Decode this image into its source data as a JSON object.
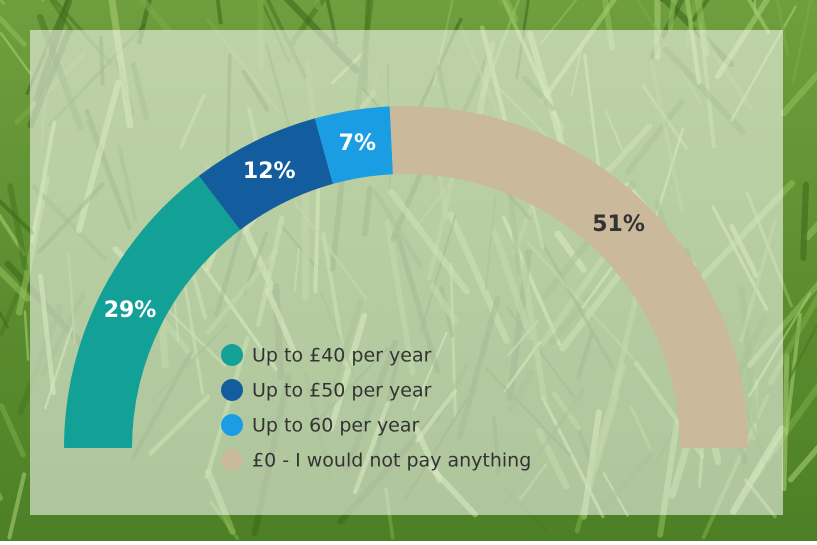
{
  "chart_data": {
    "type": "semi-donut",
    "categories": [
      "Up to £40 per year",
      "Up to £50 per year",
      "Up to 60 per year",
      "£0 - I would not pay anything"
    ],
    "values": [
      29,
      12,
      7,
      51
    ],
    "value_labels": [
      "29%",
      "12%",
      "7%",
      "51%"
    ],
    "colors": [
      "#13a097",
      "#135c9e",
      "#1a9de2",
      "#cbb99b"
    ]
  }
}
